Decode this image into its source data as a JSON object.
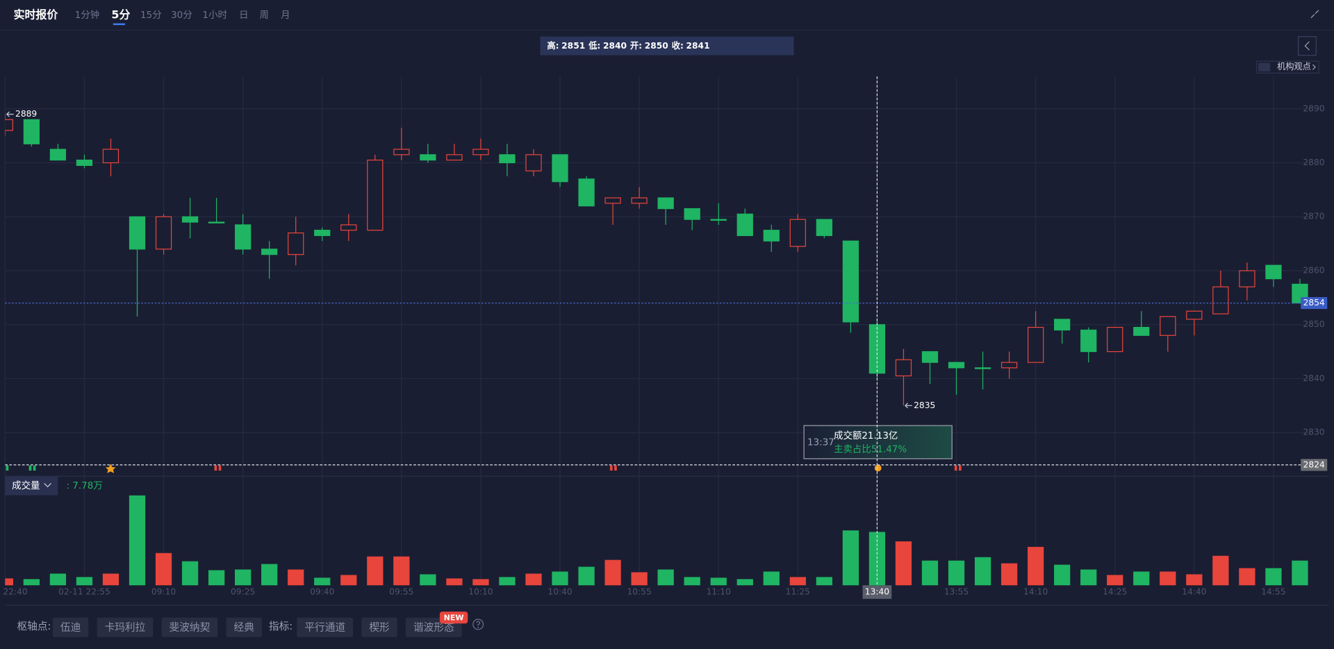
{
  "toolbar": {
    "title": "实时报价",
    "timeframes": [
      "1分钟",
      "5分",
      "15分",
      "30分",
      "1小时",
      "日",
      "周",
      "月"
    ],
    "active": 1
  },
  "info_bar": {
    "high_label": "高:",
    "high": 2851,
    "low_label": "低:",
    "low": 2840,
    "open_label": "开:",
    "open": 2850,
    "close_label": "收:",
    "close": 2841
  },
  "side_panel": {
    "label": "机构观点"
  },
  "tooltip": {
    "time": "13:37",
    "turnover": "成交额21.13亿",
    "sell_ratio": "主卖占比51.47%"
  },
  "chart_data": [
    {
      "type": "candlestick",
      "categories": [
        "22:40",
        null,
        null,
        "02-11 22:55",
        null,
        null,
        "09:10",
        null,
        null,
        "09:25",
        null,
        null,
        "09:40",
        null,
        null,
        "09:55",
        null,
        null,
        "10:10",
        null,
        null,
        "10:40",
        null,
        null,
        "10:55",
        null,
        null,
        "11:10",
        null,
        null,
        "11:25",
        null,
        null,
        "13:40",
        null,
        null,
        "13:55",
        null,
        null,
        "14:10",
        null,
        null,
        "14:25",
        null,
        null,
        "14:40",
        null,
        null,
        "14:55",
        null
      ],
      "open": [
        2886,
        2888,
        2882.5,
        2880.5,
        2880,
        2870,
        2864,
        2870,
        2869,
        2868.5,
        2864,
        2863,
        2867.5,
        2867.5,
        2867.5,
        2881.5,
        2881.5,
        2880.5,
        2881.5,
        2881.5,
        2878.5,
        2881.5,
        2877,
        2872.5,
        2872.5,
        2873.5,
        2871.5,
        2869.5,
        2870.5,
        2867.5,
        2864.5,
        2869.5,
        2865.5,
        2850,
        2840.5,
        2845,
        2843,
        2842,
        2842,
        2843,
        2851,
        2849,
        2845,
        2849.5,
        2848,
        2851,
        2852,
        2857,
        2861,
        2857.5
      ],
      "high": [
        2889,
        2888,
        2883.5,
        2881.5,
        2884.5,
        2870,
        2870.5,
        2873.5,
        2873.5,
        2870.5,
        2865.5,
        2870,
        2868,
        2870.5,
        2881.5,
        2886.5,
        2883.5,
        2883.5,
        2884.5,
        2883.5,
        2882.5,
        2881.5,
        2877.5,
        2873.5,
        2875.5,
        2873.5,
        2871.5,
        2872.5,
        2871.5,
        2868.5,
        2870.5,
        2869.5,
        2865.5,
        2851,
        2845.5,
        2845,
        2843,
        2845,
        2845,
        2852.5,
        2851,
        2849.5,
        2849.5,
        2852.5,
        2851.5,
        2852.5,
        2860,
        2861.5,
        2861,
        2858.5
      ],
      "low": [
        2885,
        2883,
        2880.5,
        2879,
        2877.5,
        2851.5,
        2863,
        2866,
        2869,
        2863,
        2858.5,
        2861,
        2865.5,
        2865.5,
        2867.5,
        2880.5,
        2880,
        2880.5,
        2880.5,
        2877.5,
        2877.5,
        2875.5,
        2872,
        2868.5,
        2871.5,
        2868.5,
        2867.5,
        2868.5,
        2866.5,
        2863.5,
        2863.5,
        2866,
        2848.5,
        2840,
        2835,
        2839,
        2837,
        2838,
        2840,
        2843,
        2846.5,
        2843,
        2845,
        2848,
        2845,
        2848,
        2852,
        2854.5,
        2857,
        2854
      ],
      "close": [
        2888,
        2883.5,
        2880.5,
        2879.5,
        2882.5,
        2864,
        2870,
        2869,
        2869,
        2864,
        2863,
        2867,
        2866.5,
        2868.5,
        2880.5,
        2882.5,
        2880.5,
        2881.5,
        2882.5,
        2880,
        2881.5,
        2876.5,
        2872,
        2873.5,
        2873.5,
        2871.5,
        2869.5,
        2869.5,
        2866.5,
        2865.5,
        2869.5,
        2866.5,
        2850.5,
        2841,
        2843.5,
        2843,
        2842,
        2842,
        2843,
        2849.5,
        2849,
        2845,
        2849.5,
        2848,
        2851.5,
        2852.5,
        2857,
        2860,
        2858.5,
        2854
      ],
      "up_color": "#e8453c",
      "down_color": "#1fb563",
      "ylim": [
        2822,
        2896
      ],
      "yticks": [
        2830,
        2840,
        2850,
        2860,
        2870,
        2880,
        2890
      ],
      "grid": true,
      "high_marker": 2889,
      "low_marker": 2835,
      "last_price": 2854,
      "crosshair_price": 2824,
      "crosshair_index": 33
    },
    {
      "type": "bar",
      "name": "成交量",
      "values": [
        1.0,
        0.9,
        1.7,
        1.2,
        1.7,
        13.1,
        4.7,
        3.5,
        2.2,
        2.3,
        3.1,
        2.3,
        1.1,
        1.5,
        4.2,
        4.2,
        1.6,
        1.0,
        0.9,
        1.2,
        1.7,
        2.0,
        2.7,
        3.7,
        1.9,
        2.3,
        1.2,
        1.1,
        0.9,
        2.0,
        1.2,
        1.2,
        8.0,
        7.78,
        6.4,
        3.6,
        3.6,
        4.1,
        3.2,
        5.6,
        3.0,
        2.3,
        1.5,
        2.0,
        2.0,
        1.6,
        4.3,
        2.5,
        2.5,
        3.6
      ],
      "ylim": [
        0,
        13.5
      ],
      "readout": {
        "value": 7.78,
        "label": ": 7.78万"
      }
    }
  ],
  "bottom_bar": {
    "pivot_label": "枢轴点:",
    "pivots": [
      "伍迪",
      "卡玛利拉",
      "斐波纳契",
      "经典"
    ],
    "indicator_label": "指标:",
    "indicators": [
      "平行通道",
      "楔形",
      "谐波形态"
    ],
    "badge": "NEW"
  }
}
